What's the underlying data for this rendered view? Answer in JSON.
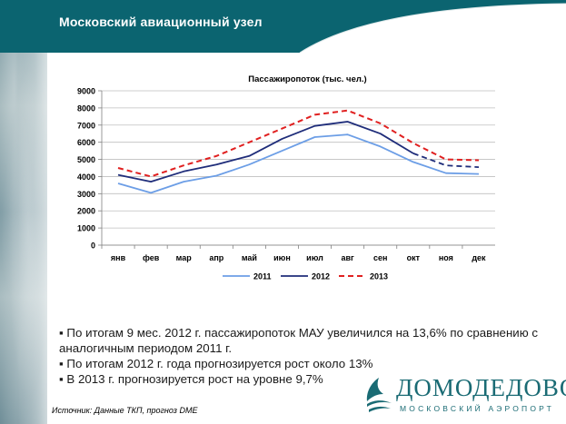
{
  "title": "Московский авиационный узел",
  "colors": {
    "banner": "#0b6470",
    "accent": "#1a6b74"
  },
  "chart_data": {
    "type": "line",
    "title": "Пассажиропоток (тыс. чел.)",
    "categories": [
      "янв",
      "фев",
      "мар",
      "апр",
      "май",
      "июн",
      "июл",
      "авг",
      "сен",
      "окт",
      "ноя",
      "дек"
    ],
    "yticks": [
      0,
      1000,
      2000,
      3000,
      4000,
      5000,
      6000,
      7000,
      8000,
      9000
    ],
    "ylim": [
      0,
      9000
    ],
    "grid": true,
    "legend_position": "bottom",
    "series": [
      {
        "name": "2011",
        "color": "#6c9ee6",
        "dash": "solid",
        "values": [
          3600,
          3050,
          3700,
          4050,
          4700,
          5500,
          6300,
          6450,
          5750,
          4850,
          4200,
          4150
        ]
      },
      {
        "name": "2012",
        "color": "#1f2d7a",
        "dash": "solid",
        "values": [
          4100,
          3700,
          4300,
          4700,
          5200,
          6200,
          6950,
          7200,
          6500,
          5350,
          null,
          null
        ]
      },
      {
        "name": "2013",
        "color": "#e02020",
        "dash": "dashed",
        "values": [
          4500,
          4000,
          4650,
          5200,
          6000,
          6800,
          7600,
          7850,
          7100,
          5950,
          5000,
          4950
        ]
      }
    ],
    "series_2012_forecast": {
      "note_points": [
        [
          9,
          5350
        ],
        [
          10,
          4650
        ],
        [
          11,
          4550
        ]
      ]
    }
  },
  "bullets": [
    "По итогам 9 мес. 2012 г. пассажиропоток МАУ увеличился на 13,6% по сравнению с аналогичным периодом 2011 г.",
    "По итогам 2012 г. года прогнозируется рост около 13%",
    "В 2013 г. прогнозируется рост на уровне 9,7%"
  ],
  "bullet_marker": "▪",
  "source": "Источник: Данные ТКП, прогноз DME",
  "logo": {
    "name": "ДОМОДЕДОВО",
    "sub": "МОСКОВСКИЙ АЭРОПОРТ",
    "icon": "domodedovo-emblem-icon"
  }
}
